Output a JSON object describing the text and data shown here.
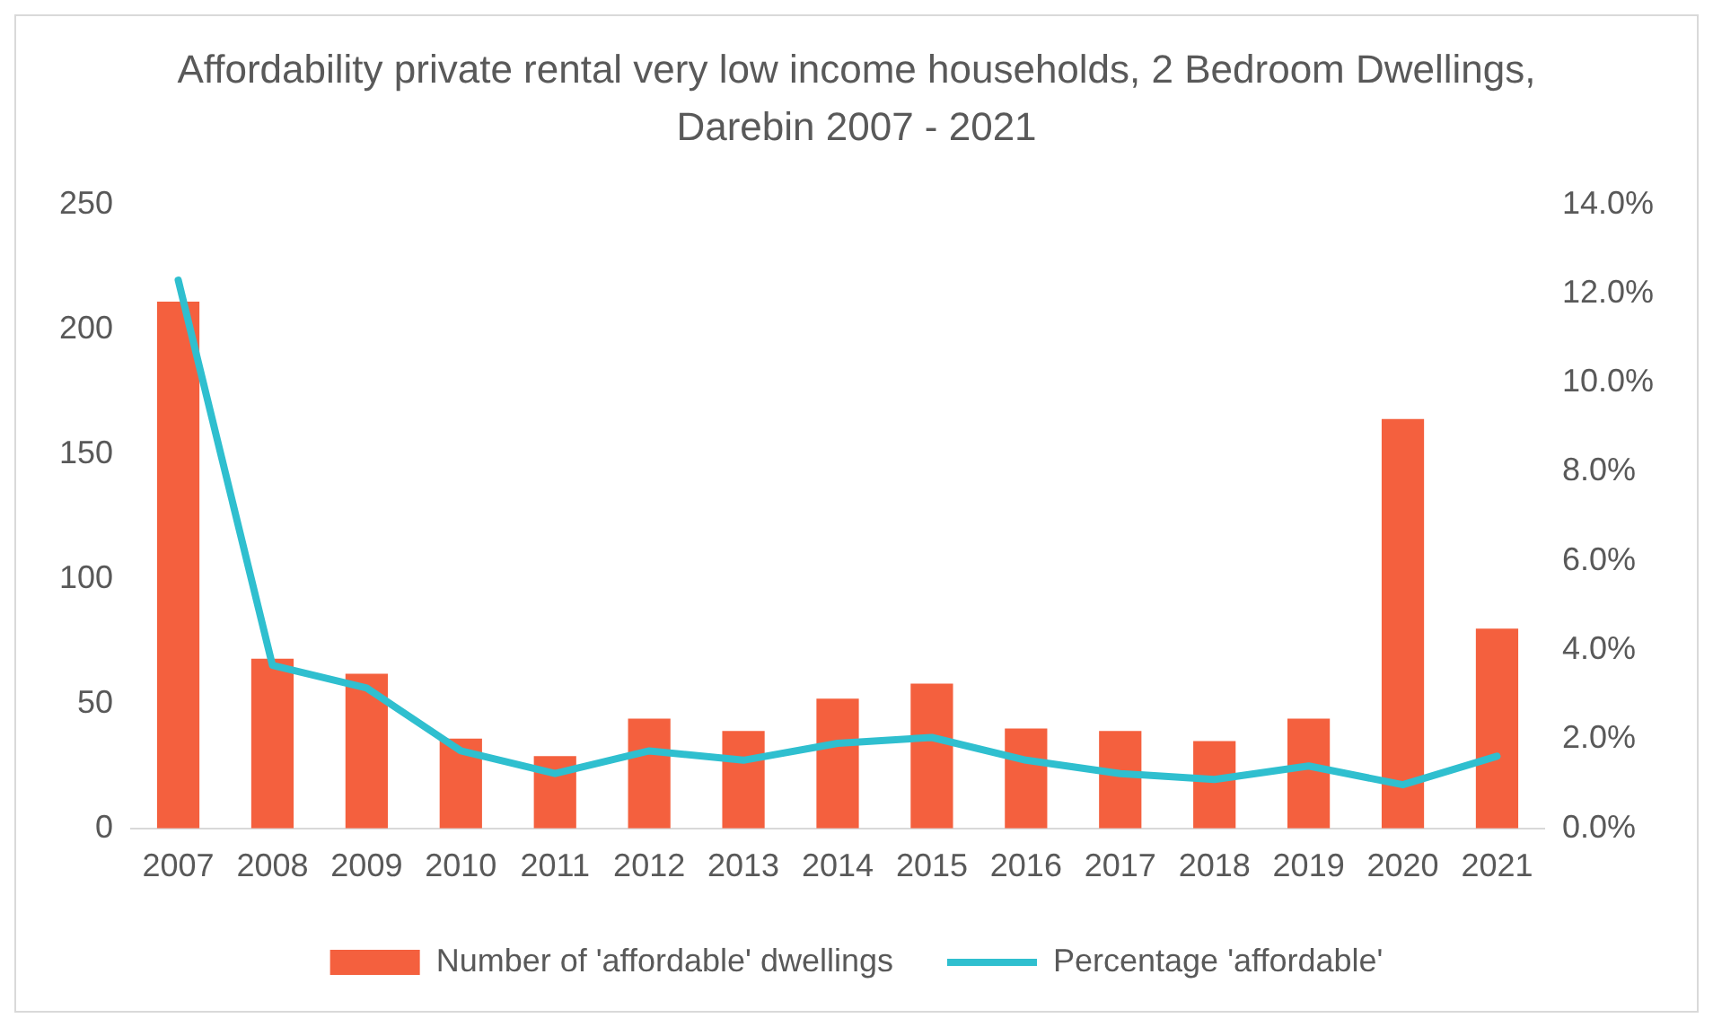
{
  "chart_data": {
    "type": "bar",
    "title": "Affordability private rental very low income households, 2 Bedroom Dwellings, Darebin 2007 - 2021",
    "categories": [
      "2007",
      "2008",
      "2009",
      "2010",
      "2011",
      "2012",
      "2013",
      "2014",
      "2015",
      "2016",
      "2017",
      "2018",
      "2019",
      "2020",
      "2021"
    ],
    "series": [
      {
        "name": "Number of 'affordable' dwellings",
        "color": "#f4603e",
        "values": [
          211,
          68,
          62,
          36,
          29,
          44,
          39,
          52,
          58,
          40,
          39,
          35,
          44,
          164,
          80
        ]
      },
      {
        "name": "Percentage 'affordable'",
        "type": "line",
        "axis": "y2",
        "color": "#2fbfcf",
        "values": [
          12.3,
          3.66,
          3.15,
          1.74,
          1.23,
          1.74,
          1.53,
          1.91,
          2.04,
          1.53,
          1.23,
          1.1,
          1.4,
          0.98,
          1.62
        ]
      }
    ],
    "ylim": [
      0,
      250
    ],
    "yticks": [
      0,
      50,
      100,
      150,
      200,
      250
    ],
    "y2lim": [
      0,
      14
    ],
    "y2ticks": [
      {
        "value": 0,
        "label": "0.0%"
      },
      {
        "value": 2,
        "label": "2.0%"
      },
      {
        "value": 4,
        "label": "4.0%"
      },
      {
        "value": 6,
        "label": "6.0%"
      },
      {
        "value": 8,
        "label": "8.0%"
      },
      {
        "value": 10,
        "label": "10.0%"
      },
      {
        "value": 12,
        "label": "12.0%"
      },
      {
        "value": 14,
        "label": "14.0%"
      }
    ],
    "grid": false,
    "legend": "bottom",
    "marker": "none",
    "line_style": "solid"
  }
}
